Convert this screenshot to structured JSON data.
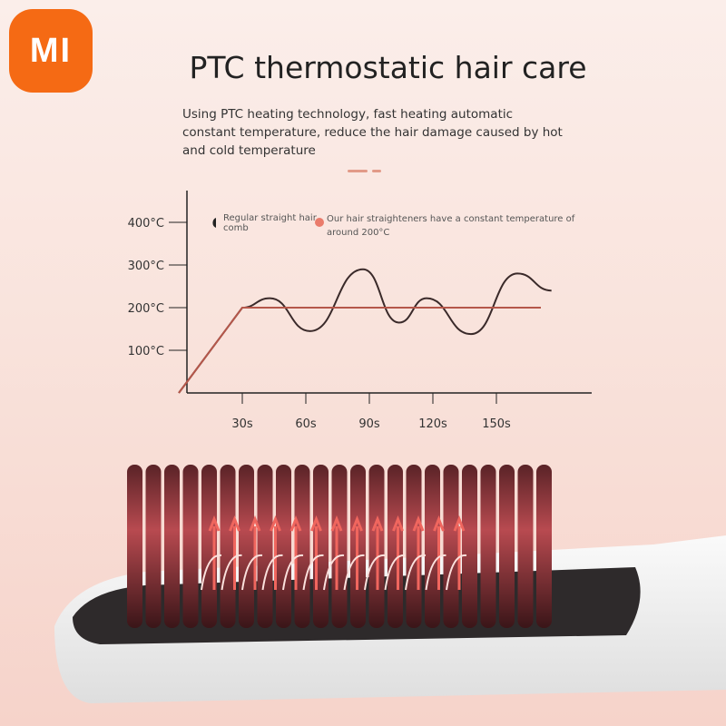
{
  "brand": {
    "logo_text": "MI",
    "color": "#f56a14"
  },
  "title": "PTC thermostatic hair care",
  "subtitle": "Using PTC heating technology, fast heating automatic constant temperature, reduce the hair damage caused by hot and cold temperature",
  "chart_data": {
    "type": "line",
    "xlabel": "",
    "ylabel": "",
    "x_ticks": [
      "30s",
      "60s",
      "90s",
      "120s",
      "150s"
    ],
    "y_ticks": [
      "100°C",
      "200°C",
      "300°C",
      "400°C"
    ],
    "xlim": [
      0,
      185
    ],
    "ylim": [
      0,
      450
    ],
    "grid": false,
    "legend_placement": "top",
    "series": [
      {
        "name": "Regular straight hair comb",
        "color": "#3a2a2a",
        "x": [
          0,
          30,
          43,
          62,
          87,
          104,
          117,
          138,
          160,
          176
        ],
        "y": [
          0,
          200,
          222,
          145,
          290,
          165,
          222,
          138,
          280,
          240
        ]
      },
      {
        "name": "Our hair straighteners have a constant temperature of around 200°C",
        "color": "#b5574a",
        "x": [
          0,
          30,
          171
        ],
        "y": [
          0,
          200,
          200
        ]
      }
    ]
  }
}
